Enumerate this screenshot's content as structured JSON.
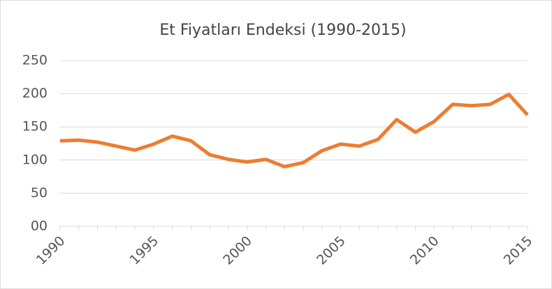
{
  "chart_data": {
    "type": "line",
    "title": "Et Fiyatları Endeksi (1990-2015)",
    "x": [
      1990,
      1991,
      1992,
      1993,
      1994,
      1995,
      1996,
      1997,
      1998,
      1999,
      2000,
      2001,
      2002,
      2003,
      2004,
      2005,
      2006,
      2007,
      2008,
      2009,
      2010,
      2011,
      2012,
      2013,
      2014,
      2015
    ],
    "series": [
      {
        "name": "Et Fiyatları Endeksi",
        "color": "#ed7d31",
        "values": [
          129,
          130,
          127,
          121,
          115,
          124,
          136,
          129,
          108,
          101,
          97,
          101,
          90,
          96,
          114,
          124,
          121,
          131,
          161,
          142,
          158,
          184,
          182,
          184,
          199,
          168
        ]
      }
    ],
    "xlim": [
      1990,
      2015
    ],
    "xticks": [
      1990,
      1995,
      2000,
      2005,
      2010,
      2015
    ],
    "ylim": [
      0,
      250
    ],
    "yticks": [
      {
        "value": 0,
        "label": "00"
      },
      50,
      100,
      150,
      200,
      250
    ],
    "grid": true
  }
}
